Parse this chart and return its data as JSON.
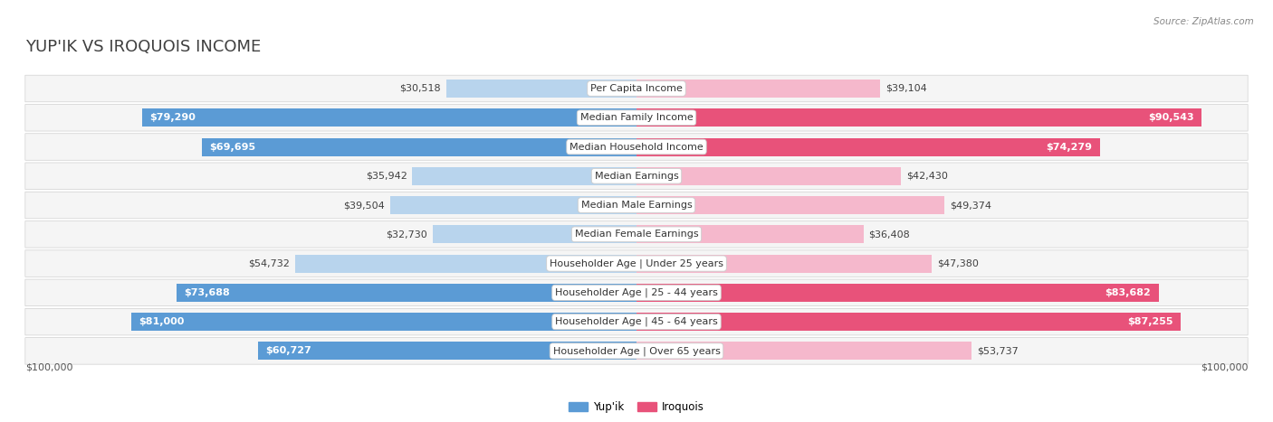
{
  "title": "YUP'IK VS IROQUOIS INCOME",
  "source": "Source: ZipAtlas.com",
  "categories": [
    "Per Capita Income",
    "Median Family Income",
    "Median Household Income",
    "Median Earnings",
    "Median Male Earnings",
    "Median Female Earnings",
    "Householder Age | Under 25 years",
    "Householder Age | 25 - 44 years",
    "Householder Age | 45 - 64 years",
    "Householder Age | Over 65 years"
  ],
  "yupik_values": [
    30518,
    79290,
    69695,
    35942,
    39504,
    32730,
    54732,
    73688,
    81000,
    60727
  ],
  "iroquois_values": [
    39104,
    90543,
    74279,
    42430,
    49374,
    36408,
    47380,
    83682,
    87255,
    53737
  ],
  "yupik_labels": [
    "$30,518",
    "$79,290",
    "$69,695",
    "$35,942",
    "$39,504",
    "$32,730",
    "$54,732",
    "$73,688",
    "$81,000",
    "$60,727"
  ],
  "iroquois_labels": [
    "$39,104",
    "$90,543",
    "$74,279",
    "$42,430",
    "$49,374",
    "$36,408",
    "$47,380",
    "$83,682",
    "$87,255",
    "$53,737"
  ],
  "max_value": 100000,
  "yupik_color_light": "#b8d4ed",
  "yupik_color_dark": "#5b9bd5",
  "iroquois_color_light": "#f5b8cc",
  "iroquois_color_dark": "#e8527a",
  "bg_color": "#ffffff",
  "row_bg_even": "#f2f2f2",
  "row_bg_odd": "#e8e8e8",
  "xlabel_left": "$100,000",
  "xlabel_right": "$100,000",
  "legend_yupik": "Yup'ik",
  "legend_iroquois": "Iroquois",
  "title_fontsize": 13,
  "label_fontsize": 8,
  "category_fontsize": 8,
  "value_threshold_dark": 60000,
  "title_color": "#404040",
  "source_color": "#888888",
  "axis_label_color": "#555555"
}
